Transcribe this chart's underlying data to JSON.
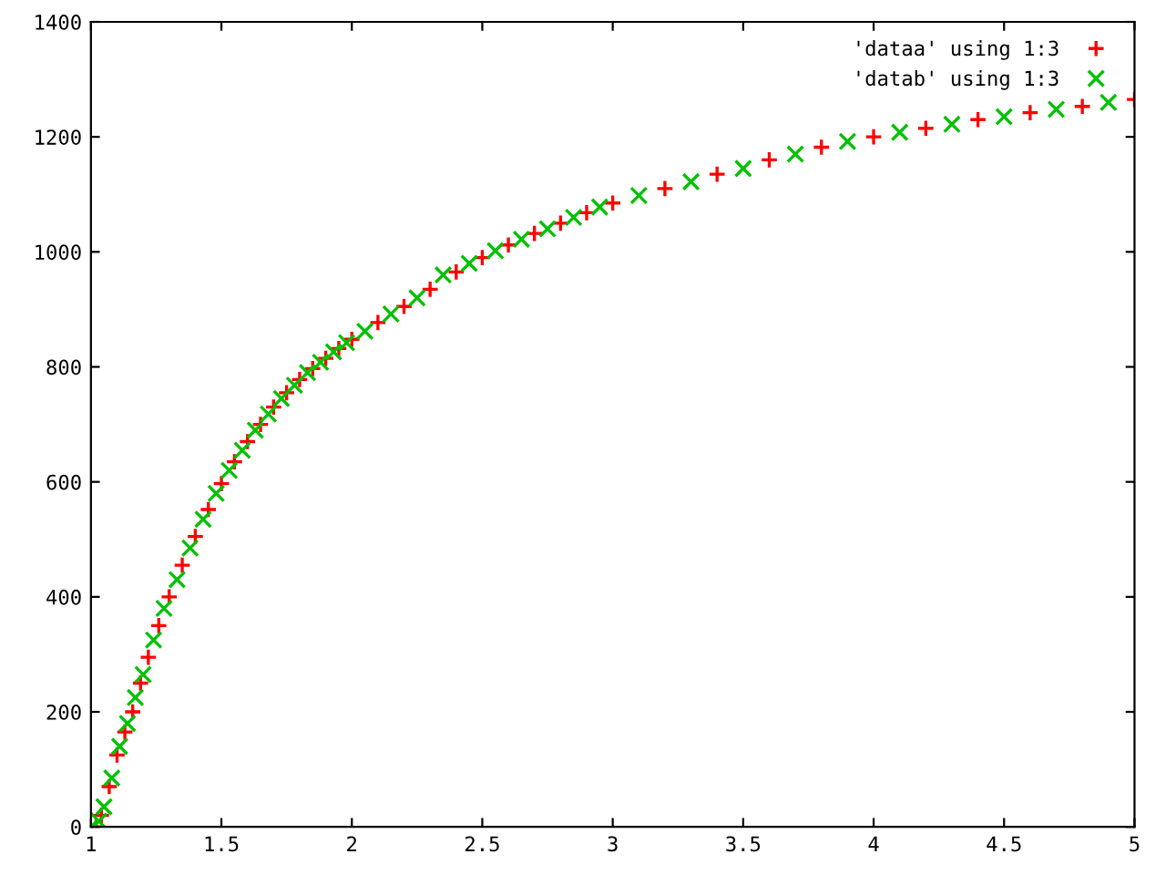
{
  "chart_data": {
    "type": "scatter",
    "xlim": [
      1,
      5
    ],
    "ylim": [
      0,
      1400
    ],
    "xticks": [
      1,
      1.5,
      2,
      2.5,
      3,
      3.5,
      4,
      4.5,
      5
    ],
    "yticks": [
      0,
      200,
      400,
      600,
      800,
      1000,
      1200,
      1400
    ],
    "grid": false,
    "legend": "top right",
    "series": [
      {
        "name": "'dataa' using 1:3",
        "color": "#ff0000",
        "marker": "plus",
        "x": [
          1.02,
          1.04,
          1.07,
          1.1,
          1.13,
          1.16,
          1.19,
          1.22,
          1.26,
          1.3,
          1.35,
          1.4,
          1.45,
          1.5,
          1.55,
          1.6,
          1.65,
          1.7,
          1.75,
          1.8,
          1.85,
          1.9,
          1.95,
          2.0,
          2.1,
          2.2,
          2.3,
          2.4,
          2.5,
          2.6,
          2.7,
          2.8,
          2.9,
          3.0,
          3.2,
          3.4,
          3.6,
          3.8,
          4.0,
          4.2,
          4.4,
          4.6,
          4.8,
          5.0
        ],
        "values": [
          0,
          20,
          70,
          125,
          165,
          200,
          250,
          295,
          350,
          400,
          455,
          505,
          552,
          597,
          635,
          670,
          700,
          730,
          755,
          778,
          797,
          815,
          832,
          848,
          877,
          905,
          935,
          965,
          990,
          1012,
          1032,
          1050,
          1068,
          1085,
          1110,
          1135,
          1160,
          1182,
          1200,
          1215,
          1230,
          1242,
          1253,
          1265
        ]
      },
      {
        "name": "'datab' using 1:3",
        "color": "#00c000",
        "marker": "cross",
        "x": [
          1.0,
          1.03,
          1.05,
          1.08,
          1.11,
          1.14,
          1.17,
          1.2,
          1.24,
          1.28,
          1.33,
          1.38,
          1.43,
          1.48,
          1.53,
          1.58,
          1.63,
          1.68,
          1.73,
          1.78,
          1.83,
          1.88,
          1.93,
          1.98,
          2.05,
          2.15,
          2.25,
          2.35,
          2.45,
          2.55,
          2.65,
          2.75,
          2.85,
          2.95,
          3.1,
          3.3,
          3.5,
          3.7,
          3.9,
          4.1,
          4.3,
          4.5,
          4.7,
          4.9
        ],
        "values": [
          0,
          10,
          35,
          85,
          140,
          180,
          225,
          265,
          325,
          380,
          430,
          485,
          535,
          580,
          620,
          655,
          690,
          718,
          745,
          768,
          790,
          808,
          826,
          842,
          862,
          892,
          920,
          960,
          980,
          1002,
          1022,
          1040,
          1060,
          1078,
          1098,
          1122,
          1145,
          1170,
          1192,
          1208,
          1222,
          1235,
          1248,
          1260
        ]
      }
    ]
  }
}
